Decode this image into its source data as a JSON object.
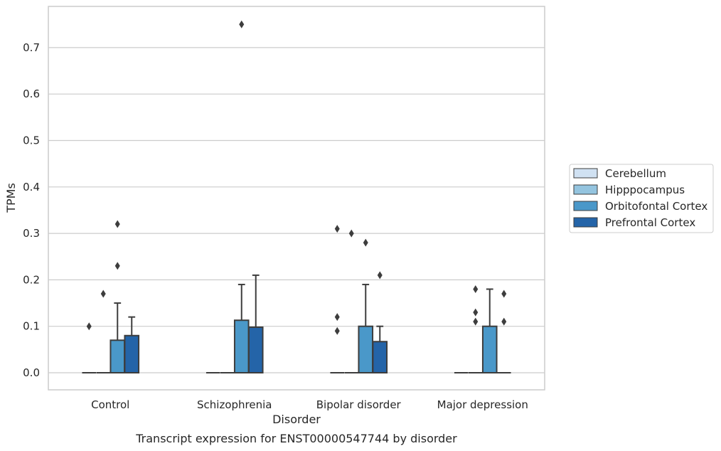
{
  "chart_data": {
    "type": "box",
    "caption": "Transcript expression for ENST00000547744 by disorder",
    "xlabel": "Disorder",
    "ylabel": "TPMs",
    "ylim": [
      -0.036,
      0.79
    ],
    "yticks": [
      "0.0",
      "0.1",
      "0.2",
      "0.3",
      "0.4",
      "0.5",
      "0.6",
      "0.7"
    ],
    "grid": "horizontal",
    "legend_position": "right",
    "categories": [
      "Control",
      "Schizophrenia",
      "Bipolar disorder",
      "Major depression"
    ],
    "series": [
      {
        "name": "Cerebellum",
        "color": "#d0e1f2",
        "boxes": [
          {
            "category": "Control",
            "q1": 0,
            "median": 0,
            "q3": 0,
            "whisker_low": 0,
            "whisker_high": 0,
            "outliers": [
              0.1
            ]
          },
          {
            "category": "Schizophrenia",
            "q1": 0,
            "median": 0,
            "q3": 0,
            "whisker_low": 0,
            "whisker_high": 0,
            "outliers": []
          },
          {
            "category": "Bipolar disorder",
            "q1": 0,
            "median": 0,
            "q3": 0,
            "whisker_low": 0,
            "whisker_high": 0,
            "outliers": [
              0.31,
              0.12,
              0.09
            ]
          },
          {
            "category": "Major depression",
            "q1": 0,
            "median": 0,
            "q3": 0,
            "whisker_low": 0,
            "whisker_high": 0,
            "outliers": []
          }
        ]
      },
      {
        "name": "Hipppocampus",
        "color": "#94c4df",
        "boxes": [
          {
            "category": "Control",
            "q1": 0,
            "median": 0,
            "q3": 0,
            "whisker_low": 0,
            "whisker_high": 0,
            "outliers": [
              0.17
            ]
          },
          {
            "category": "Schizophrenia",
            "q1": 0,
            "median": 0,
            "q3": 0,
            "whisker_low": 0,
            "whisker_high": 0,
            "outliers": []
          },
          {
            "category": "Bipolar disorder",
            "q1": 0,
            "median": 0,
            "q3": 0,
            "whisker_low": 0,
            "whisker_high": 0,
            "outliers": [
              0.3
            ]
          },
          {
            "category": "Major depression",
            "q1": 0,
            "median": 0,
            "q3": 0,
            "whisker_low": 0,
            "whisker_high": 0,
            "outliers": [
              0.18,
              0.13,
              0.11
            ]
          }
        ]
      },
      {
        "name": "Orbitofontal Cortex",
        "color": "#4a98c9",
        "boxes": [
          {
            "category": "Control",
            "q1": 0,
            "median": 0,
            "q3": 0.07,
            "whisker_low": 0,
            "whisker_high": 0.15,
            "outliers": [
              0.32,
              0.23
            ]
          },
          {
            "category": "Schizophrenia",
            "q1": 0,
            "median": 0,
            "q3": 0.113,
            "whisker_low": 0,
            "whisker_high": 0.19,
            "outliers": [
              0.75
            ]
          },
          {
            "category": "Bipolar disorder",
            "q1": 0,
            "median": 0,
            "q3": 0.1,
            "whisker_low": 0,
            "whisker_high": 0.19,
            "outliers": [
              0.28
            ]
          },
          {
            "category": "Major depression",
            "q1": 0,
            "median": 0,
            "q3": 0.1,
            "whisker_low": 0,
            "whisker_high": 0.18,
            "outliers": []
          }
        ]
      },
      {
        "name": "Prefrontal Cortex",
        "color": "#2464a8",
        "boxes": [
          {
            "category": "Control",
            "q1": 0,
            "median": 0,
            "q3": 0.08,
            "whisker_low": 0,
            "whisker_high": 0.12,
            "outliers": []
          },
          {
            "category": "Schizophrenia",
            "q1": 0,
            "median": 0,
            "q3": 0.098,
            "whisker_low": 0,
            "whisker_high": 0.21,
            "outliers": []
          },
          {
            "category": "Bipolar disorder",
            "q1": 0,
            "median": 0,
            "q3": 0.067,
            "whisker_low": 0,
            "whisker_high": 0.1,
            "outliers": [
              0.21
            ]
          },
          {
            "category": "Major depression",
            "q1": 0,
            "median": 0,
            "q3": 0,
            "whisker_low": 0,
            "whisker_high": 0,
            "outliers": [
              0.17,
              0.11
            ]
          }
        ]
      }
    ],
    "colors": {
      "grid": "#cccccc",
      "frame": "#cccccc",
      "box_edge": "#3d3d3d",
      "outlier": "#3d3d3d"
    }
  }
}
